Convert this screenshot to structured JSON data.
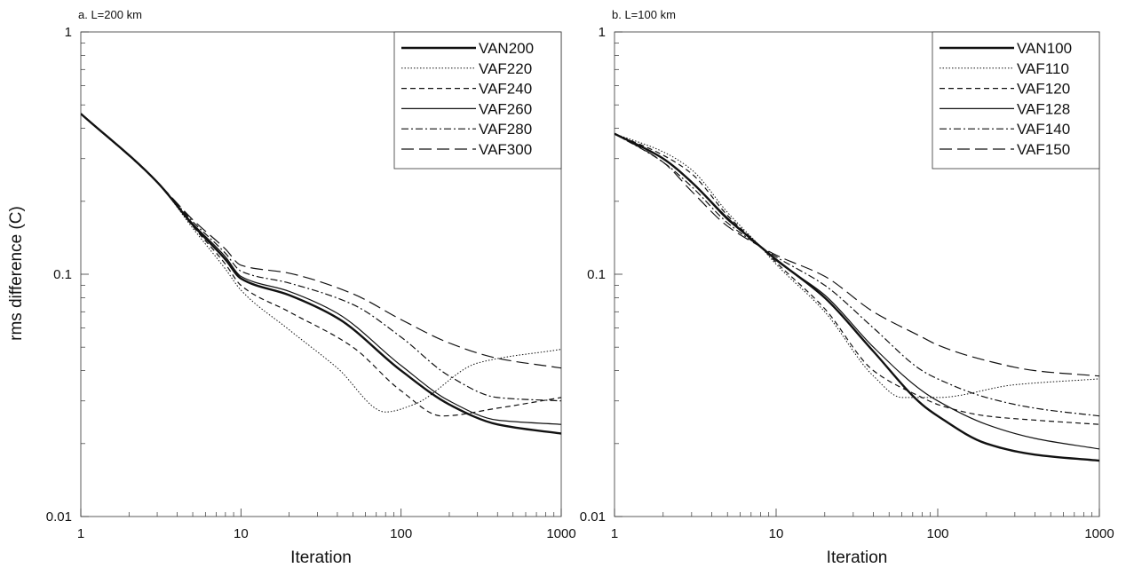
{
  "figure": {
    "ylabel": "rms difference (C)"
  },
  "chart_data": [
    {
      "type": "line",
      "title": "a. L=200 km",
      "xlabel": "Iteration",
      "ylabel": "rms difference (C)",
      "xscale": "log",
      "yscale": "log",
      "xlim": [
        1,
        1000
      ],
      "ylim": [
        0.01,
        1
      ],
      "xticks": [
        "1",
        "10",
        "100",
        "1000"
      ],
      "yticks": [
        "1",
        "0.1",
        "0.01"
      ],
      "grid": false,
      "legend_position": "top-right",
      "series": [
        {
          "name": "VAN200",
          "style": "solid-thick",
          "x": [
            1,
            3,
            5,
            8,
            10,
            20,
            40,
            100,
            200,
            400,
            1000
          ],
          "y": [
            0.46,
            0.24,
            0.16,
            0.115,
            0.096,
            0.082,
            0.066,
            0.04,
            0.029,
            0.024,
            0.022
          ]
        },
        {
          "name": "VAF220",
          "style": "dotted",
          "x": [
            1,
            3,
            5,
            8,
            10,
            20,
            40,
            80,
            120,
            300,
            1000
          ],
          "y": [
            0.46,
            0.24,
            0.155,
            0.105,
            0.086,
            0.059,
            0.041,
            0.027,
            0.029,
            0.043,
            0.049
          ]
        },
        {
          "name": "VAF240",
          "style": "dashed",
          "x": [
            1,
            3,
            5,
            8,
            10,
            20,
            50,
            100,
            180,
            400,
            1000
          ],
          "y": [
            0.46,
            0.24,
            0.158,
            0.11,
            0.09,
            0.07,
            0.05,
            0.033,
            0.026,
            0.028,
            0.031
          ]
        },
        {
          "name": "VAF260",
          "style": "solid-thin",
          "x": [
            1,
            3,
            5,
            8,
            10,
            20,
            40,
            100,
            200,
            400,
            1000
          ],
          "y": [
            0.46,
            0.24,
            0.162,
            0.118,
            0.098,
            0.085,
            0.069,
            0.042,
            0.03,
            0.025,
            0.024
          ]
        },
        {
          "name": "VAF280",
          "style": "dash-dot",
          "x": [
            1,
            3,
            5,
            8,
            10,
            20,
            50,
            100,
            200,
            400,
            1000
          ],
          "y": [
            0.46,
            0.24,
            0.165,
            0.122,
            0.103,
            0.092,
            0.075,
            0.055,
            0.038,
            0.031,
            0.03
          ]
        },
        {
          "name": "VAF300",
          "style": "long-dash",
          "x": [
            1,
            3,
            5,
            8,
            10,
            20,
            50,
            100,
            200,
            400,
            1000
          ],
          "y": [
            0.46,
            0.24,
            0.168,
            0.127,
            0.109,
            0.101,
            0.083,
            0.065,
            0.052,
            0.045,
            0.041
          ]
        }
      ]
    },
    {
      "type": "line",
      "title": "b. L=100 km",
      "xlabel": "Iteration",
      "ylabel": "",
      "xscale": "log",
      "yscale": "log",
      "xlim": [
        1,
        1000
      ],
      "ylim": [
        0.01,
        1
      ],
      "xticks": [
        "1",
        "10",
        "100",
        "1000"
      ],
      "yticks": [
        "1",
        "0.1",
        "0.01"
      ],
      "grid": false,
      "legend_position": "top-right",
      "series": [
        {
          "name": "VAN100",
          "style": "solid-thick",
          "x": [
            1,
            2,
            3,
            5,
            8,
            10,
            20,
            40,
            80,
            100,
            200,
            400,
            1000
          ],
          "y": [
            0.38,
            0.3,
            0.24,
            0.17,
            0.13,
            0.115,
            0.08,
            0.048,
            0.029,
            0.026,
            0.02,
            0.018,
            0.017
          ]
        },
        {
          "name": "VAF110",
          "style": "dotted",
          "x": [
            1,
            2,
            3,
            5,
            8,
            10,
            20,
            40,
            60,
            100,
            300,
            1000
          ],
          "y": [
            0.38,
            0.32,
            0.27,
            0.18,
            0.13,
            0.11,
            0.07,
            0.038,
            0.031,
            0.031,
            0.035,
            0.037
          ]
        },
        {
          "name": "VAF120",
          "style": "dashed",
          "x": [
            1,
            2,
            3,
            5,
            8,
            10,
            20,
            40,
            80,
            100,
            200,
            400,
            1000
          ],
          "y": [
            0.38,
            0.31,
            0.26,
            0.175,
            0.13,
            0.112,
            0.072,
            0.04,
            0.031,
            0.029,
            0.026,
            0.025,
            0.024
          ]
        },
        {
          "name": "VAF128",
          "style": "solid-thin",
          "x": [
            1,
            2,
            3,
            5,
            8,
            10,
            20,
            40,
            80,
            100,
            200,
            400,
            1000
          ],
          "y": [
            0.38,
            0.3,
            0.24,
            0.168,
            0.13,
            0.114,
            0.082,
            0.05,
            0.033,
            0.03,
            0.024,
            0.021,
            0.019
          ]
        },
        {
          "name": "VAF140",
          "style": "dash-dot",
          "x": [
            1,
            2,
            3,
            5,
            8,
            10,
            20,
            40,
            80,
            100,
            200,
            400,
            1000
          ],
          "y": [
            0.38,
            0.29,
            0.23,
            0.163,
            0.13,
            0.118,
            0.09,
            0.06,
            0.04,
            0.037,
            0.031,
            0.028,
            0.026
          ]
        },
        {
          "name": "VAF150",
          "style": "long-dash",
          "x": [
            1,
            2,
            3,
            5,
            8,
            10,
            20,
            40,
            80,
            100,
            200,
            400,
            1000
          ],
          "y": [
            0.38,
            0.29,
            0.22,
            0.158,
            0.13,
            0.12,
            0.098,
            0.07,
            0.055,
            0.051,
            0.044,
            0.04,
            0.038
          ]
        }
      ]
    }
  ]
}
